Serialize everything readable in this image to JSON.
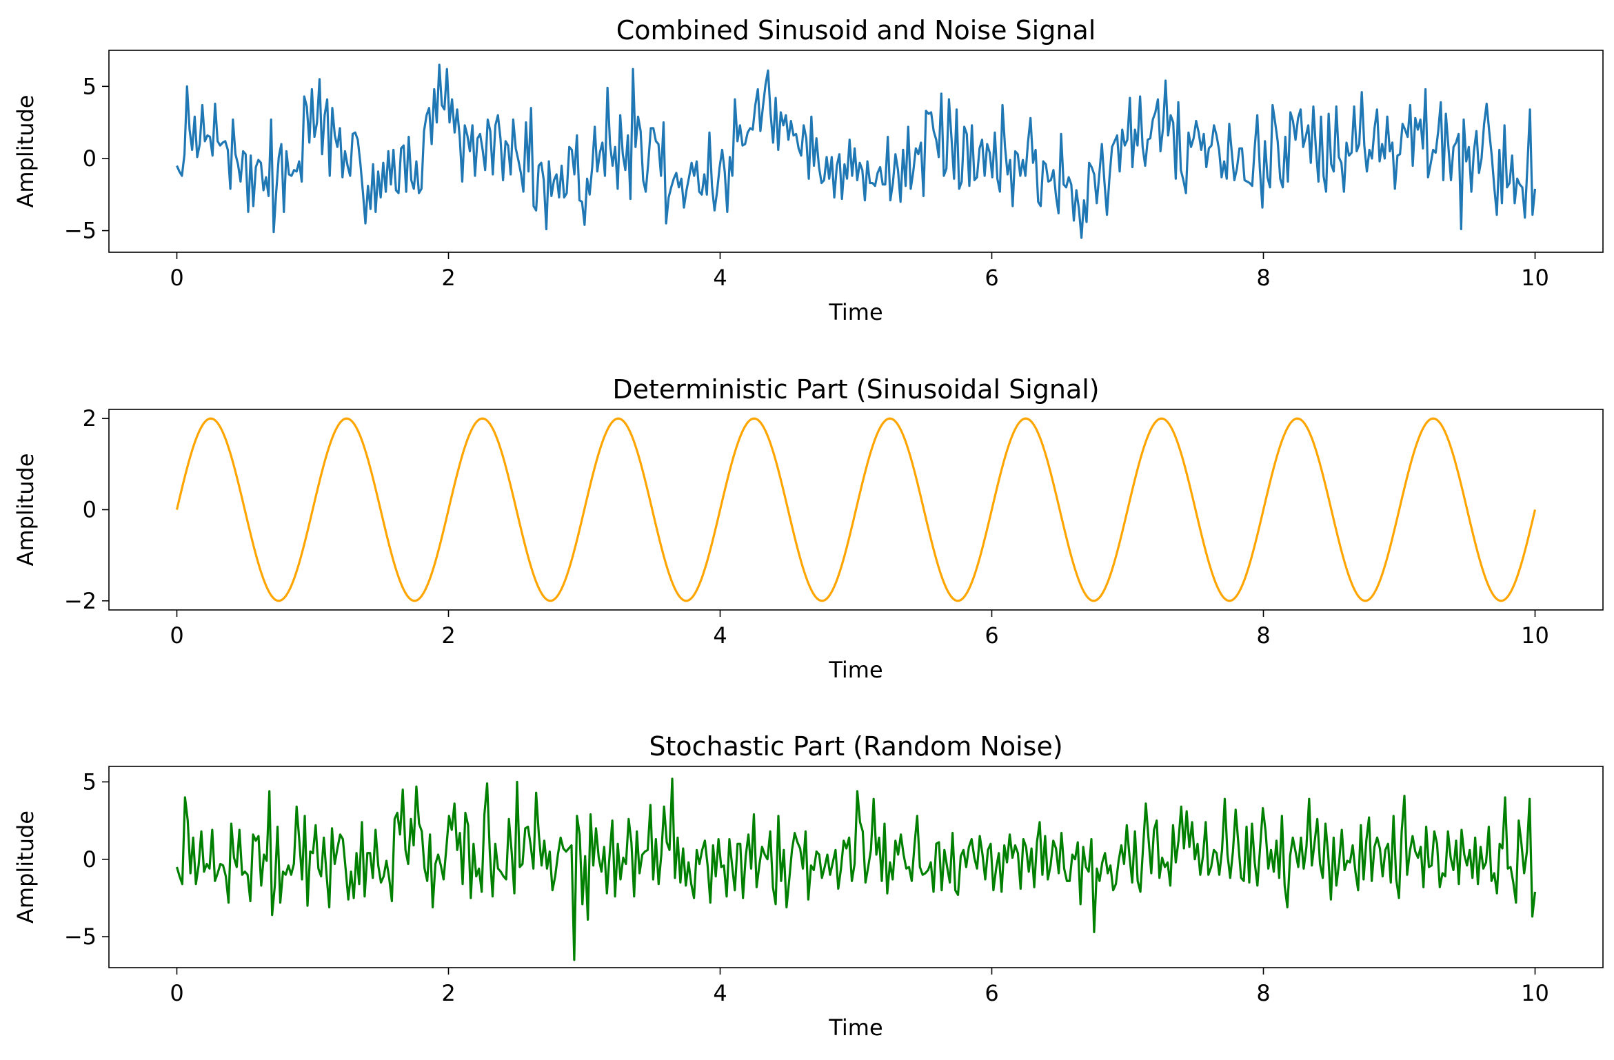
{
  "chart_data": [
    {
      "type": "line",
      "title": "Combined Sinusoid and Noise Signal",
      "xlabel": "Time",
      "ylabel": "Amplitude",
      "xlim": [
        -0.5,
        10.5
      ],
      "ylim": [
        -6.5,
        7.5
      ],
      "xticks": [
        0,
        2,
        4,
        6,
        8,
        10
      ],
      "yticks": [
        -5,
        0,
        5
      ],
      "grid": false,
      "series": [
        {
          "color": "#1f77b4",
          "x_start": 0,
          "x_end": 10,
          "values": [
            -0.5,
            -0.9,
            -1.2,
            0.3,
            5.0,
            2.0,
            0.6,
            2.9,
            0.1,
            1.0,
            3.7,
            1.2,
            1.6,
            1.5,
            0.2,
            3.8,
            1.2,
            0.9,
            1.1,
            1.2,
            0.6,
            -2.1,
            2.7,
            0.3,
            -0.4,
            -1.6,
            0.5,
            0.3,
            -3.7,
            0.2,
            -3.3,
            -0.6,
            -0.1,
            -0.3,
            -2.2,
            -1.3,
            -2.6,
            2.7,
            -5.1,
            -2.3,
            0.1,
            1.0,
            -3.7,
            0.5,
            -1.1,
            -1.2,
            -0.8,
            -0.9,
            -0.2,
            -1.6,
            4.3,
            3.6,
            1.1,
            4.8,
            1.5,
            2.5,
            5.5,
            0.3,
            3.0,
            4.1,
            -1.2,
            3.5,
            1.6,
            0.8,
            2.1,
            -1.3,
            0.5,
            -0.5,
            -1.2,
            1.7,
            1.8,
            1.3,
            -0.3,
            -2.3,
            -4.5,
            -1.9,
            -3.5,
            -0.4,
            -3.7,
            -0.9,
            -2.7,
            -0.3,
            -2.3,
            0.5,
            -1.8,
            0.6,
            -2.2,
            -2.4,
            0.7,
            0.9,
            -2.3,
            1.5,
            -1.5,
            -2.1,
            -0.2,
            -2.4,
            -2.1,
            1.9,
            3.0,
            3.5,
            1.0,
            4.8,
            2.5,
            6.5,
            3.7,
            3.4,
            6.2,
            2.5,
            4.1,
            1.8,
            3.4,
            1.5,
            -1.6,
            2.3,
            1.6,
            0.5,
            2.3,
            -1.2,
            1.4,
            1.7,
            0.6,
            -0.8,
            2.7,
            1.9,
            -1.1,
            2.3,
            3.0,
            1.4,
            -1.5,
            1.2,
            0.9,
            -1.1,
            2.7,
            0.7,
            -0.1,
            -1.0,
            -2.3,
            2.5,
            -0.9,
            3.5,
            -3.3,
            -3.6,
            -0.5,
            -0.3,
            -1.5,
            -4.9,
            -0.2,
            -2.6,
            -1.5,
            -1.1,
            -2.7,
            -0.5,
            -2.7,
            -2.4,
            0.8,
            0.6,
            -1.1,
            1.6,
            -2.9,
            -3.0,
            -4.6,
            -1.4,
            -2.5,
            -0.6,
            2.2,
            -0.9,
            0.4,
            1.1,
            -1.2,
            4.9,
            1.0,
            -0.5,
            0.8,
            -2.1,
            3.0,
            0.3,
            -0.8,
            1.6,
            -2.8,
            6.2,
            0.8,
            2.9,
            1.9,
            -1.5,
            -2.3,
            -0.3,
            2.1,
            2.1,
            1.2,
            1.0,
            -1.2,
            2.5,
            -4.5,
            -2.7,
            -2.0,
            -1.4,
            -1.0,
            -2.0,
            -1.4,
            -3.4,
            -2.2,
            -1.3,
            -0.3,
            -1.2,
            -0.2,
            -2.3,
            -2.5,
            -1.1,
            -2.5,
            1.8,
            -1.9,
            -3.6,
            -2.3,
            -0.6,
            0.6,
            -0.9,
            -3.7,
            0.1,
            -1.2,
            4.1,
            1.2,
            2.3,
            0.9,
            1.0,
            1.8,
            2.1,
            2.0,
            3.7,
            4.8,
            1.9,
            3.6,
            5.1,
            6.1,
            3.1,
            1.1,
            4.2,
            0.6,
            3.2,
            2.3,
            3.0,
            1.3,
            2.6,
            1.6,
            1.7,
            0.7,
            0.2,
            2.3,
            1.4,
            -1.4,
            2.9,
            -0.5,
            1.4,
            -0.6,
            -1.7,
            -1.5,
            0.1,
            -1.4,
            0.1,
            -2.7,
            -0.5,
            0.3,
            -2.8,
            -0.4,
            -1.4,
            1.3,
            -1.2,
            0.7,
            -1.5,
            -0.3,
            -0.8,
            -2.9,
            -0.2,
            -1.7,
            -1.7,
            -1.9,
            -1.0,
            -0.6,
            -1.8,
            -1.8,
            1.5,
            -2.9,
            -1.7,
            0.3,
            -0.8,
            -3.0,
            0.6,
            -1.9,
            2.2,
            -2.1,
            -0.9,
            0.7,
            0.3,
            1.1,
            -2.6,
            3.3,
            3.1,
            3.2,
            1.9,
            1.3,
            0.1,
            4.5,
            -1.2,
            -0.7,
            4.1,
            1.4,
            -1.4,
            3.4,
            -2.1,
            -1.6,
            2.2,
            1.7,
            -1.9,
            2.3,
            -1.5,
            -1.3,
            0.7,
            1.3,
            -1.2,
            1.0,
            0.4,
            -1.3,
            1.8,
            -1.4,
            -2.3,
            3.7,
            0.8,
            -1.1,
            -0.1,
            -3.3,
            0.5,
            0.3,
            -1.2,
            -0.1,
            -1.2,
            1.1,
            2.8,
            -0.3,
            0.6,
            -3.0,
            -3.3,
            -0.2,
            -0.4,
            -1.6,
            -1.5,
            -0.8,
            -2.6,
            -3.8,
            1.7,
            -1.8,
            -2.0,
            -1.3,
            -1.8,
            -4.3,
            -2.2,
            -3.5,
            -5.5,
            -2.9,
            -4.4,
            -0.3,
            -0.6,
            -1.1,
            -3.1,
            -1.1,
            1.0,
            -1.6,
            -3.9,
            -1.3,
            0.8,
            1.2,
            1.6,
            -0.9,
            2.0,
            0.9,
            1.3,
            4.2,
            -0.6,
            2.0,
            0.9,
            4.3,
            0.8,
            -0.5,
            1.3,
            1.4,
            2.7,
            3.2,
            4.1,
            0.5,
            2.1,
            5.4,
            1.6,
            3.0,
            2.5,
            -1.4,
            3.9,
            -0.8,
            -1.5,
            -2.4,
            1.8,
            0.8,
            1.4,
            2.6,
            1.8,
            0.6,
            1.7,
            -0.6,
            0.7,
            0.9,
            2.3,
            1.6,
            0.6,
            -1.3,
            -0.2,
            -1.4,
            2.4,
            0.4,
            -1.5,
            -0.7,
            0.7,
            0.7,
            -1.5,
            -1.6,
            -1.7,
            -1.9,
            0.8,
            3.0,
            -0.7,
            -3.4,
            1.2,
            -1.3,
            -2.0,
            3.7,
            2.5,
            1.2,
            -1.4,
            -2.0,
            1.5,
            -1.6,
            3.2,
            2.6,
            1.3,
            2.8,
            3.4,
            0.8,
            1.5,
            2.3,
            -0.3,
            3.6,
            0.7,
            -1.6,
            2.9,
            -1.2,
            -2.3,
            3.1,
            -0.4,
            -0.9,
            3.6,
            0.1,
            -0.3,
            -2.3,
            1.1,
            0.2,
            0.4,
            3.6,
            0.5,
            1.0,
            4.6,
            0.9,
            -0.9,
            0.6,
            0.0,
            2.1,
            3.4,
            -0.2,
            1.0,
            0.0,
            2.9,
            0.5,
            1.1,
            -2.1,
            0.2,
            0.3,
            2.4,
            2.0,
            1.5,
            3.7,
            -0.5,
            2.8,
            2.0,
            2.7,
            0.7,
            4.8,
            -1.3,
            -0.4,
            0.6,
            0.4,
            1.9,
            3.9,
            -1.5,
            3.1,
            0.8,
            -1.5,
            0.8,
            1.1,
            1.7,
            -4.9,
            2.7,
            -0.2,
            0.8,
            -2.3,
            0.5,
            1.9,
            -1.0,
            0.0,
            2.4,
            3.8,
            1.9,
            0.2,
            -2.0,
            -3.9,
            0.6,
            -3.1,
            2.3,
            -2.0,
            -1.7,
            0.2,
            -3.1,
            -1.4,
            -1.8,
            -2.0,
            -4.1,
            -0.5,
            3.4,
            -3.9,
            -2.1
          ]
        }
      ]
    },
    {
      "type": "line",
      "title": "Deterministic Part (Sinusoidal Signal)",
      "xlabel": "Time",
      "ylabel": "Amplitude",
      "xlim": [
        -0.5,
        10.5
      ],
      "ylim": [
        -2.2,
        2.2
      ],
      "xticks": [
        0,
        2,
        4,
        6,
        8,
        10
      ],
      "yticks": [
        -2,
        0,
        2
      ],
      "grid": false,
      "series": [
        {
          "color": "#ffa500",
          "function": "2 * sin(2 * pi * t)",
          "amplitude": 2,
          "frequency": 1,
          "x_start": 0,
          "x_end": 10
        }
      ]
    },
    {
      "type": "line",
      "title": "Stochastic Part (Random Noise)",
      "xlabel": "Time",
      "ylabel": "Amplitude",
      "xlim": [
        -0.5,
        10.5
      ],
      "ylim": [
        -7,
        6
      ],
      "xticks": [
        0,
        2,
        4,
        6,
        8,
        10
      ],
      "yticks": [
        -5,
        0,
        5
      ],
      "grid": false,
      "series": [
        {
          "color": "#008000",
          "x_start": 0,
          "x_end": 10,
          "values": [
            -0.5,
            -1.1,
            -1.6,
            4.0,
            2.5,
            -0.9,
            1.4,
            -1.6,
            -0.4,
            1.8,
            -0.8,
            -0.3,
            -0.6,
            1.9,
            -1.4,
            -0.9,
            -0.3,
            -0.4,
            -1.1,
            -2.8,
            2.3,
            0.1,
            -0.5,
            1.9,
            -1.0,
            -0.8,
            -1.0,
            -2.7,
            1.6,
            1.2,
            1.5,
            -1.7,
            0.3,
            -0.1,
            4.4,
            -3.6,
            -1.7,
            2.1,
            -2.8,
            -0.8,
            -1.0,
            -0.4,
            -1.0,
            -0.3,
            3.4,
            1.2,
            -1.3,
            2.8,
            -3.0,
            0.5,
            0.4,
            2.2,
            -0.6,
            -1.1,
            1.4,
            -1.0,
            -3.1,
            2.0,
            -0.3,
            0.7,
            1.6,
            1.3,
            -0.6,
            -2.6,
            -0.8,
            -2.5,
            0.4,
            -1.6,
            2.4,
            -2.4,
            0.4,
            0.4,
            -1.2,
            1.9,
            -0.4,
            -1.5,
            -1.1,
            -0.1,
            -1.2,
            -2.7,
            2.6,
            3.0,
            1.6,
            4.5,
            0.6,
            -0.3,
            2.6,
            0.9,
            4.7,
            2.3,
            1.8,
            -0.6,
            -1.4,
            1.6,
            -3.1,
            -0.3,
            0.3,
            -0.4,
            -1.3,
            0.7,
            2.8,
            1.9,
            3.6,
            0.6,
            1.7,
            -1.6,
            3.0,
            2.2,
            -2.5,
            1.0,
            -1.1,
            -0.6,
            -2.1,
            2.9,
            4.9,
            0.4,
            -2.4,
            1.0,
            -0.6,
            -0.8,
            -1.1,
            -1.3,
            2.6,
            0.5,
            -2.2,
            5.0,
            -0.5,
            -0.3,
            2.0,
            2.1,
            0.9,
            -0.6,
            4.3,
            1.6,
            -0.4,
            1.2,
            -0.6,
            0.5,
            -2.0,
            -1.1,
            0.3,
            1.4,
            0.7,
            0.5,
            0.7,
            0.9,
            -6.5,
            2.8,
            1.6,
            -2.9,
            0.2,
            -3.9,
            2.9,
            -0.4,
            2.0,
            0.1,
            -0.8,
            0.8,
            -2.2,
            0.3,
            2.5,
            -2.4,
            1.0,
            -1.3,
            0.1,
            -0.3,
            2.6,
            1.1,
            -2.4,
            1.8,
            -0.9,
            0.3,
            0.5,
            0.6,
            3.5,
            -1.3,
            1.3,
            -1.6,
            0.3,
            3.4,
            1.1,
            0.6,
            5.2,
            -1.2,
            1.4,
            -1.5,
            0.7,
            -1.7,
            -0.2,
            -1.6,
            -2.5,
            0.6,
            -0.3,
            0.6,
            1.2,
            -0.4,
            -2.8,
            0.9,
            -1.1,
            1.3,
            -0.5,
            -0.4,
            -2.4,
            1.3,
            -0.4,
            -2.0,
            1.0,
            1.0,
            -2.5,
            0.2,
            1.6,
            -0.6,
            2.9,
            -1.8,
            -0.4,
            0.8,
            0.3,
            0.0,
            1.8,
            -1.8,
            -2.9,
            2.8,
            -1.4,
            0.6,
            -3.1,
            -1.3,
            0.6,
            1.7,
            1.1,
            0.7,
            -0.6,
            1.8,
            -2.6,
            -0.4,
            -0.7,
            0.5,
            0.3,
            -1.2,
            -0.5,
            0.3,
            -1.0,
            -0.2,
            0.6,
            -1.9,
            -0.6,
            1.2,
            0.7,
            1.4,
            -1.4,
            -0.3,
            4.4,
            2.4,
            1.8,
            -1.5,
            -0.5,
            0.6,
            3.9,
            0.3,
            1.4,
            -1.4,
            2.3,
            -2.2,
            -0.2,
            -1.3,
            1.2,
            0.3,
            1.6,
            0.3,
            -0.6,
            -0.5,
            -1.4,
            0.9,
            2.8,
            -0.5,
            -1.0,
            -0.9,
            -0.7,
            -0.2,
            -2.1,
            1.0,
            1.1,
            -2.0,
            0.6,
            -0.5,
            -1.5,
            1.7,
            -2.0,
            -2.3,
            0.2,
            0.6,
            -0.5,
            0.8,
            1.3,
            0.1,
            -0.6,
            1.5,
            0.3,
            -1.3,
            0.6,
            1.0,
            -2.0,
            -0.6,
            0.4,
            -2.1,
            0.9,
            -0.2,
            1.6,
            0.1,
            0.9,
            0.4,
            -1.9,
            1.3,
            0.8,
            -0.8,
            0.7,
            -1.8,
            1.1,
            2.4,
            -1.0,
            1.5,
            -1.3,
            -0.4,
            1.2,
            0.7,
            -0.9,
            1.7,
            -0.6,
            -1.4,
            -1.4,
            0.3,
            0.0,
            1.1,
            -2.9,
            0.8,
            -0.5,
            -0.8,
            1.3,
            -4.7,
            -0.6,
            -1.4,
            -0.2,
            0.4,
            -0.9,
            -0.4,
            -2.0,
            -1.6,
            -0.1,
            0.9,
            -0.3,
            2.2,
            0.2,
            -1.5,
            1.8,
            -1.4,
            -2.1,
            0.8,
            3.6,
            1.3,
            -0.9,
            1.9,
            2.5,
            -1.2,
            0.1,
            -0.5,
            -0.2,
            -1.7,
            2.2,
            -0.2,
            1.2,
            3.4,
            0.7,
            3.1,
            0.8,
            2.4,
            0.0,
            1.0,
            -1.0,
            0.2,
            2.4,
            -1.0,
            -0.5,
            0.6,
            0.4,
            -1.0,
            0.6,
            3.9,
            0.3,
            -1.2,
            0.5,
            3.2,
            1.0,
            -1.2,
            -1.4,
            2.1,
            -1.5,
            2.3,
            -0.2,
            -1.7,
            0.8,
            3.3,
            1.8,
            -0.6,
            0.6,
            -0.8,
            1.2,
            -1.2,
            2.8,
            -1.7,
            -3.1,
            0.2,
            1.4,
            0.5,
            -0.5,
            1.4,
            -0.6,
            0.8,
            3.9,
            -0.4,
            1.1,
            2.6,
            -0.3,
            -1.2,
            2.3,
            0.3,
            -2.6,
            1.4,
            -1.7,
            -0.2,
            1.9,
            -0.7,
            -0.1,
            -0.2,
            0.9,
            -0.8,
            -2.0,
            2.2,
            -1.3,
            1.2,
            2.7,
            -1.4,
            0.8,
            1.4,
            0.7,
            -1.1,
            0.6,
            1.0,
            -1.5,
            2.8,
            -1.3,
            -2.5,
            1.8,
            4.1,
            -1.0,
            0.5,
            1.5,
            0.5,
            0.1,
            0.8,
            -1.8,
            2.1,
            -0.5,
            -0.4,
            1.8,
            1.0,
            -1.8,
            -0.9,
            -1.1,
            1.8,
            0.1,
            -0.7,
            1.2,
            -1.6,
            1.9,
            0.3,
            -0.4,
            0.6,
            -1.2,
            1.4,
            -1.6,
            0.8,
            -0.6,
            -0.2,
            2.1,
            -1.4,
            -0.9,
            -2.2,
            1.0,
            0.7,
            4.0,
            -0.6,
            -0.5,
            -1.5,
            -2.8,
            2.5,
            1.0,
            -0.9,
            0.5,
            3.9,
            -3.7,
            -2.1
          ]
        }
      ]
    }
  ]
}
